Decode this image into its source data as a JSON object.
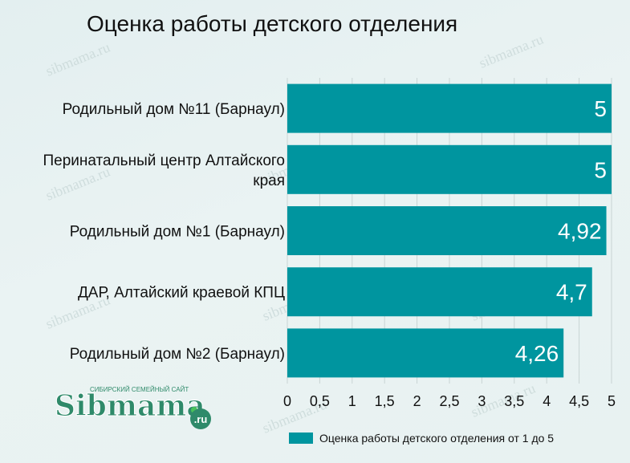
{
  "title": "Оценка работы детского отделения",
  "logo": {
    "tagline": "СИБИРСКИЙ СЕМЕЙНЫЙ САЙТ",
    "name": "Sibmama",
    "domain": ".ru"
  },
  "watermark": "sibmama.ru",
  "colors": {
    "bar": "#00959f",
    "grid": "#c9d4d4",
    "logo_green": "#2f8a6a",
    "logo_dot": "#49c25b"
  },
  "chart_data": {
    "type": "bar",
    "orientation": "horizontal",
    "title": "Оценка работы детского отделения",
    "categories": [
      "Родильный дом №11 (Барнаул)",
      [
        "Перинатальный центр Алтайского",
        "края"
      ],
      "Родильный дом №1 (Барнаул)",
      "ДАР, Алтайский краевой КПЦ",
      "Родильный дом №2 (Барнаул)"
    ],
    "values": [
      5,
      5,
      4.92,
      4.7,
      4.26
    ],
    "value_labels": [
      "5",
      "5",
      "4,92",
      "4,7",
      "4,26"
    ],
    "xlim": [
      0,
      5
    ],
    "ticks": [
      0,
      0.5,
      1,
      1.5,
      2,
      2.5,
      3,
      3.5,
      4,
      4.5,
      5
    ],
    "tick_labels": [
      "0",
      "0,5",
      "1",
      "1,5",
      "2",
      "2,5",
      "3",
      "3,5",
      "4",
      "4,5",
      "5"
    ],
    "grid": true,
    "legend_position": "bottom-right",
    "series": [
      {
        "name": "Оценка работы детского отделения от 1 до 5",
        "values": [
          5,
          5,
          4.92,
          4.7,
          4.26
        ]
      }
    ]
  }
}
